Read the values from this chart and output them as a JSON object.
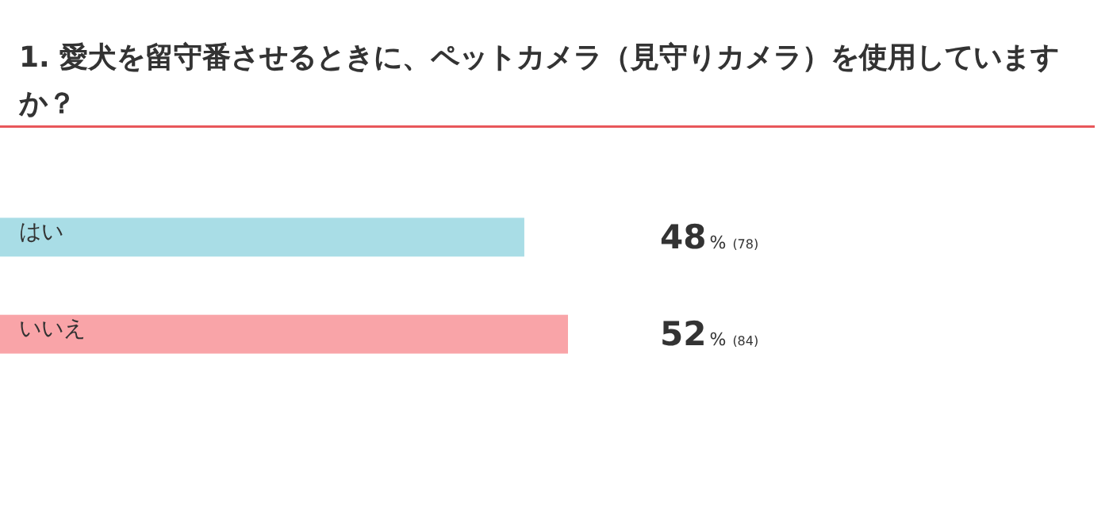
{
  "chart_data": {
    "type": "bar",
    "orientation": "horizontal",
    "title": "1. 愛犬を留守番させるときに、ペットカメラ（見守りカメラ）を使用していますか？",
    "categories": [
      "はい",
      "いいえ"
    ],
    "values": [
      48,
      52
    ],
    "colors": [
      "#a9dde6",
      "#f9a4a8"
    ],
    "value_labels": [
      "48% (78)",
      "52% (84)"
    ]
  }
}
